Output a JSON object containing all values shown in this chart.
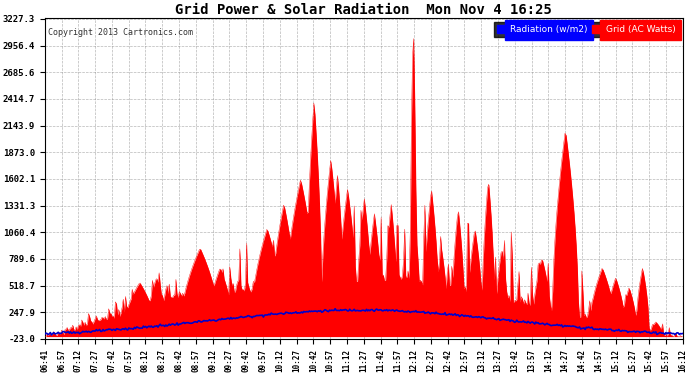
{
  "title": "Grid Power & Solar Radiation  Mon Nov 4 16:25",
  "copyright": "Copyright 2013 Cartronics.com",
  "legend_radiation": "Radiation (w/m2)",
  "legend_grid": "Grid (AC Watts)",
  "yticks": [
    3227.3,
    2956.4,
    2685.6,
    2414.7,
    2143.9,
    1873.0,
    1602.1,
    1331.3,
    1060.4,
    789.6,
    518.7,
    247.9,
    -23.0
  ],
  "xtick_labels": [
    "06:41",
    "06:57",
    "07:12",
    "07:27",
    "07:42",
    "07:57",
    "08:12",
    "08:27",
    "08:42",
    "08:57",
    "09:12",
    "09:27",
    "09:42",
    "09:57",
    "10:12",
    "10:27",
    "10:42",
    "10:57",
    "11:12",
    "11:27",
    "11:42",
    "11:57",
    "12:12",
    "12:27",
    "12:42",
    "12:57",
    "13:12",
    "13:27",
    "13:42",
    "13:57",
    "14:12",
    "14:27",
    "14:42",
    "14:57",
    "15:12",
    "15:27",
    "15:42",
    "15:57",
    "16:12"
  ],
  "ymin": -23.0,
  "ymax": 3227.3,
  "bg_color": "#ffffff",
  "grid_color": "#888888",
  "red_color": "#ff0000",
  "blue_color": "#0000cc",
  "fill_red_color": "#ff0000",
  "title_color": "#000000",
  "copyright_color": "#333333"
}
